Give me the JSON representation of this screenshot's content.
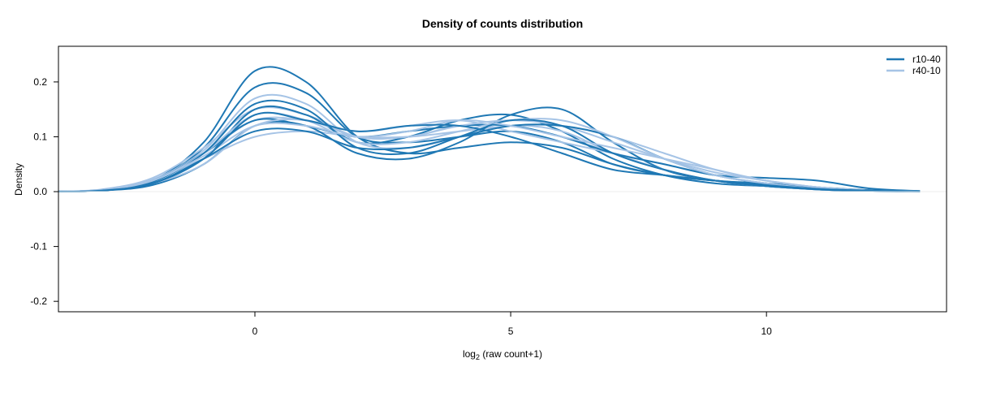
{
  "chart_data": {
    "type": "line",
    "title": "Density of counts distribution",
    "xlabel": {
      "base": "log",
      "subscript": "2",
      "rest": " (raw count+1)"
    },
    "ylabel": "Density",
    "xlim": [
      -3.84,
      13.52
    ],
    "ylim": [
      -0.219,
      0.265
    ],
    "xticks": [
      0,
      5,
      10
    ],
    "yticks": [
      0.2,
      0.1,
      0.0,
      -0.1,
      -0.2
    ],
    "xtick_labels": [
      "0",
      "5",
      "10"
    ],
    "ytick_labels": [
      "0.2",
      "0.1",
      "0.0",
      "-0.1",
      "-0.2"
    ],
    "grid": false,
    "reference_line_y": 0,
    "legend": {
      "placement": "top-right",
      "entries": [
        {
          "label": "r10-40",
          "color": "#1f78b4"
        },
        {
          "label": "r40-10",
          "color": "#a6c4e6"
        }
      ]
    },
    "x": [
      -4,
      -3,
      -2,
      -1,
      0,
      1,
      2,
      3,
      4,
      5,
      6,
      7,
      8,
      9,
      10,
      11,
      12,
      13
    ],
    "series": [
      {
        "group": "r10-40",
        "values": [
          0,
          0.003,
          0.02,
          0.09,
          0.22,
          0.2,
          0.1,
          0.07,
          0.08,
          0.09,
          0.08,
          0.05,
          0.03,
          0.02,
          0.015,
          0.008,
          0.003,
          0.001
        ]
      },
      {
        "group": "r40-10",
        "values": [
          0,
          0.003,
          0.02,
          0.06,
          0.1,
          0.11,
          0.1,
          0.1,
          0.11,
          0.12,
          0.12,
          0.1,
          0.07,
          0.04,
          0.02,
          0.008,
          0.002,
          0
        ]
      },
      {
        "group": "r10-40",
        "values": [
          0,
          0.003,
          0.02,
          0.08,
          0.19,
          0.18,
          0.1,
          0.09,
          0.1,
          0.11,
          0.09,
          0.05,
          0.03,
          0.02,
          0.012,
          0.006,
          0.002,
          0.001
        ]
      },
      {
        "group": "r40-10",
        "values": [
          0,
          0.004,
          0.025,
          0.08,
          0.15,
          0.14,
          0.1,
          0.1,
          0.12,
          0.12,
          0.1,
          0.07,
          0.04,
          0.02,
          0.01,
          0.004,
          0.001,
          0
        ]
      },
      {
        "group": "r10-40",
        "values": [
          0,
          0.002,
          0.015,
          0.06,
          0.15,
          0.14,
          0.09,
          0.1,
          0.13,
          0.14,
          0.11,
          0.06,
          0.03,
          0.015,
          0.01,
          0.005,
          0.002,
          0
        ]
      },
      {
        "group": "r40-10",
        "values": [
          0,
          0.003,
          0.02,
          0.07,
          0.13,
          0.13,
          0.11,
          0.12,
          0.13,
          0.11,
          0.09,
          0.07,
          0.05,
          0.03,
          0.015,
          0.006,
          0.002,
          0
        ]
      },
      {
        "group": "r10-40",
        "values": [
          0,
          0.002,
          0.012,
          0.05,
          0.12,
          0.12,
          0.07,
          0.06,
          0.09,
          0.14,
          0.15,
          0.09,
          0.04,
          0.02,
          0.01,
          0.004,
          0.001,
          0
        ]
      },
      {
        "group": "r40-10",
        "values": [
          0,
          0.003,
          0.022,
          0.075,
          0.17,
          0.16,
          0.09,
          0.08,
          0.1,
          0.12,
          0.11,
          0.07,
          0.04,
          0.02,
          0.01,
          0.004,
          0.001,
          0
        ]
      },
      {
        "group": "r10-40",
        "values": [
          0,
          0.003,
          0.02,
          0.07,
          0.13,
          0.12,
          0.1,
          0.11,
          0.12,
          0.12,
          0.1,
          0.07,
          0.05,
          0.03,
          0.025,
          0.02,
          0.006,
          0.001
        ]
      },
      {
        "group": "r40-10",
        "values": [
          0,
          0.002,
          0.015,
          0.05,
          0.12,
          0.13,
          0.1,
          0.1,
          0.12,
          0.13,
          0.12,
          0.09,
          0.06,
          0.035,
          0.02,
          0.008,
          0.002,
          0
        ]
      },
      {
        "group": "r10-40",
        "values": [
          0,
          0.002,
          0.015,
          0.06,
          0.11,
          0.11,
          0.08,
          0.08,
          0.1,
          0.12,
          0.12,
          0.1,
          0.06,
          0.03,
          0.015,
          0.006,
          0.002,
          0
        ]
      },
      {
        "group": "r40-10",
        "values": [
          0,
          0.003,
          0.02,
          0.07,
          0.14,
          0.13,
          0.09,
          0.09,
          0.11,
          0.13,
          0.13,
          0.1,
          0.06,
          0.03,
          0.015,
          0.005,
          0.001,
          0
        ]
      },
      {
        "group": "r10-40",
        "values": [
          0,
          0.002,
          0.018,
          0.07,
          0.16,
          0.15,
          0.08,
          0.07,
          0.1,
          0.13,
          0.12,
          0.07,
          0.04,
          0.02,
          0.01,
          0.004,
          0.001,
          0
        ]
      },
      {
        "group": "r40-10",
        "values": [
          0,
          0.003,
          0.02,
          0.065,
          0.12,
          0.12,
          0.1,
          0.11,
          0.13,
          0.12,
          0.1,
          0.08,
          0.06,
          0.04,
          0.02,
          0.008,
          0.002,
          0
        ]
      },
      {
        "group": "r10-40",
        "values": [
          0,
          0.002,
          0.015,
          0.06,
          0.14,
          0.13,
          0.11,
          0.12,
          0.12,
          0.1,
          0.07,
          0.04,
          0.03,
          0.02,
          0.012,
          0.005,
          0.002,
          0
        ]
      }
    ]
  }
}
